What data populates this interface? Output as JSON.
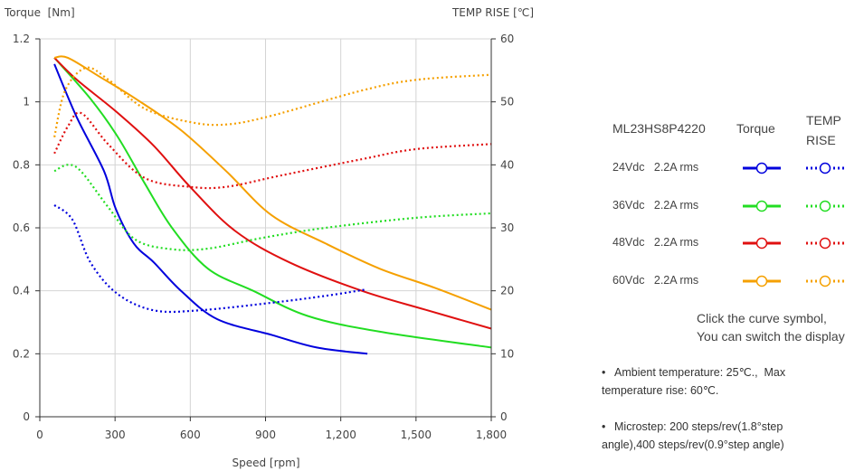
{
  "chart_data": {
    "type": "line",
    "title": "",
    "xlabel": "Speed [rpm]",
    "ylabel": "Torque  [Nm]",
    "y2label": "TEMP RISE [℃]",
    "xlim": [
      0,
      1800
    ],
    "ylim": [
      0,
      1.2
    ],
    "y2lim": [
      0,
      60
    ],
    "grid": true,
    "x_ticks": [
      0,
      300,
      600,
      900,
      1200,
      1500,
      1800
    ],
    "x_tick_labels": [
      "0",
      "300",
      "600",
      "900",
      "1,200",
      "1,500",
      "1,800"
    ],
    "y_ticks": [
      0,
      0.2,
      0.4,
      0.6,
      0.8,
      1.0,
      1.2
    ],
    "y_tick_labels": [
      "0",
      "0.2",
      "0.4",
      "0.6",
      "0.8",
      "1",
      "1.2"
    ],
    "y2_ticks": [
      0,
      10,
      20,
      30,
      40,
      50,
      60
    ],
    "y2_tick_labels": [
      "0",
      "10",
      "20",
      "30",
      "40",
      "50",
      "60"
    ],
    "legend_position": "right",
    "series": [
      {
        "name": "24Vdc 2.2A rms Torque",
        "axis": "left",
        "style": "solid",
        "color": "#0000dd",
        "x": [
          58,
          148,
          256,
          303,
          375,
          455,
          563,
          707,
          924,
          1104,
          1306
        ],
        "y": [
          1.12,
          0.95,
          0.78,
          0.66,
          0.55,
          0.49,
          0.4,
          0.31,
          0.26,
          0.22,
          0.2
        ]
      },
      {
        "name": "36Vdc 2.2A rms Torque",
        "axis": "left",
        "style": "solid",
        "color": "#22dd22",
        "x": [
          58,
          202,
          310,
          419,
          527,
          671,
          851,
          1068,
          1356,
          1800
        ],
        "y": [
          1.14,
          1.01,
          0.89,
          0.74,
          0.6,
          0.47,
          0.4,
          0.32,
          0.27,
          0.22
        ]
      },
      {
        "name": "48Vdc 2.2A rms Torque",
        "axis": "left",
        "style": "solid",
        "color": "#e01010",
        "x": [
          58,
          148,
          303,
          455,
          599,
          779,
          996,
          1284,
          1537,
          1800
        ],
        "y": [
          1.14,
          1.07,
          0.97,
          0.86,
          0.73,
          0.59,
          0.49,
          0.4,
          0.34,
          0.28
        ]
      },
      {
        "name": "60Vdc 2.2A rms Torque",
        "axis": "left",
        "style": "solid",
        "color": "#f5a000",
        "x": [
          58,
          112,
          238,
          382,
          563,
          743,
          924,
          1140,
          1356,
          1573,
          1800
        ],
        "y": [
          1.14,
          1.14,
          1.08,
          1.01,
          0.91,
          0.78,
          0.64,
          0.55,
          0.47,
          0.41,
          0.34
        ]
      },
      {
        "name": "24Vdc 2.2A rms TEMP RISE",
        "axis": "right",
        "style": "dotted",
        "color": "#0000dd",
        "x": [
          58,
          130,
          202,
          310,
          455,
          635,
          924,
          1140,
          1299
        ],
        "y": [
          33.6,
          31.3,
          24.5,
          19.5,
          16.9,
          16.9,
          18.1,
          19.2,
          20.2
        ]
      },
      {
        "name": "36Vdc 2.2A rms TEMP RISE",
        "axis": "right",
        "style": "dotted",
        "color": "#22dd22",
        "x": [
          58,
          112,
          166,
          274,
          382,
          527,
          671,
          888,
          1140,
          1501,
          1800
        ],
        "y": [
          39.0,
          40.0,
          38.9,
          33.2,
          28.1,
          26.6,
          26.7,
          28.4,
          30.0,
          31.6,
          32.3
        ]
      },
      {
        "name": "48Vdc 2.2A rms TEMP RISE",
        "axis": "right",
        "style": "dotted",
        "color": "#e01010",
        "x": [
          58,
          112,
          166,
          274,
          419,
          599,
          743,
          960,
          1284,
          1501,
          1800
        ],
        "y": [
          41.8,
          46.1,
          48.2,
          43.2,
          37.9,
          36.5,
          36.5,
          38.3,
          40.9,
          42.5,
          43.3
        ]
      },
      {
        "name": "60Vdc 2.2A rms TEMP RISE",
        "axis": "right",
        "style": "dotted",
        "color": "#f5a000",
        "x": [
          58,
          101,
          184,
          274,
          419,
          599,
          743,
          924,
          1284,
          1501,
          1800
        ],
        "y": [
          44.4,
          51.8,
          55.4,
          53.5,
          48.9,
          46.8,
          46.4,
          47.8,
          51.8,
          53.5,
          54.3
        ]
      }
    ]
  },
  "legend": {
    "model": "ML23HS8P4220",
    "torque_header": "Torque",
    "temp_header_line1": "TEMP",
    "temp_header_line2": "RISE",
    "rows": [
      {
        "label": "24Vdc   2.2A rms",
        "color": "#0000dd"
      },
      {
        "label": "36Vdc   2.2A rms",
        "color": "#22dd22"
      },
      {
        "label": "48Vdc   2.2A rms",
        "color": "#e01010"
      },
      {
        "label": "60Vdc   2.2A rms",
        "color": "#f5a000"
      }
    ]
  },
  "hint": {
    "line1": "Click the curve symbol,",
    "line2": "You can switch the display"
  },
  "notes": [
    {
      "bullet": "•",
      "line1": "Ambient temperature: 25℃.,  Max",
      "line2": "temperature rise: 60℃."
    },
    {
      "bullet": "•",
      "line1": "Microstep: 200 steps/rev(1.8°step",
      "line2": "angle),400 steps/rev(0.9°step angle)"
    }
  ]
}
